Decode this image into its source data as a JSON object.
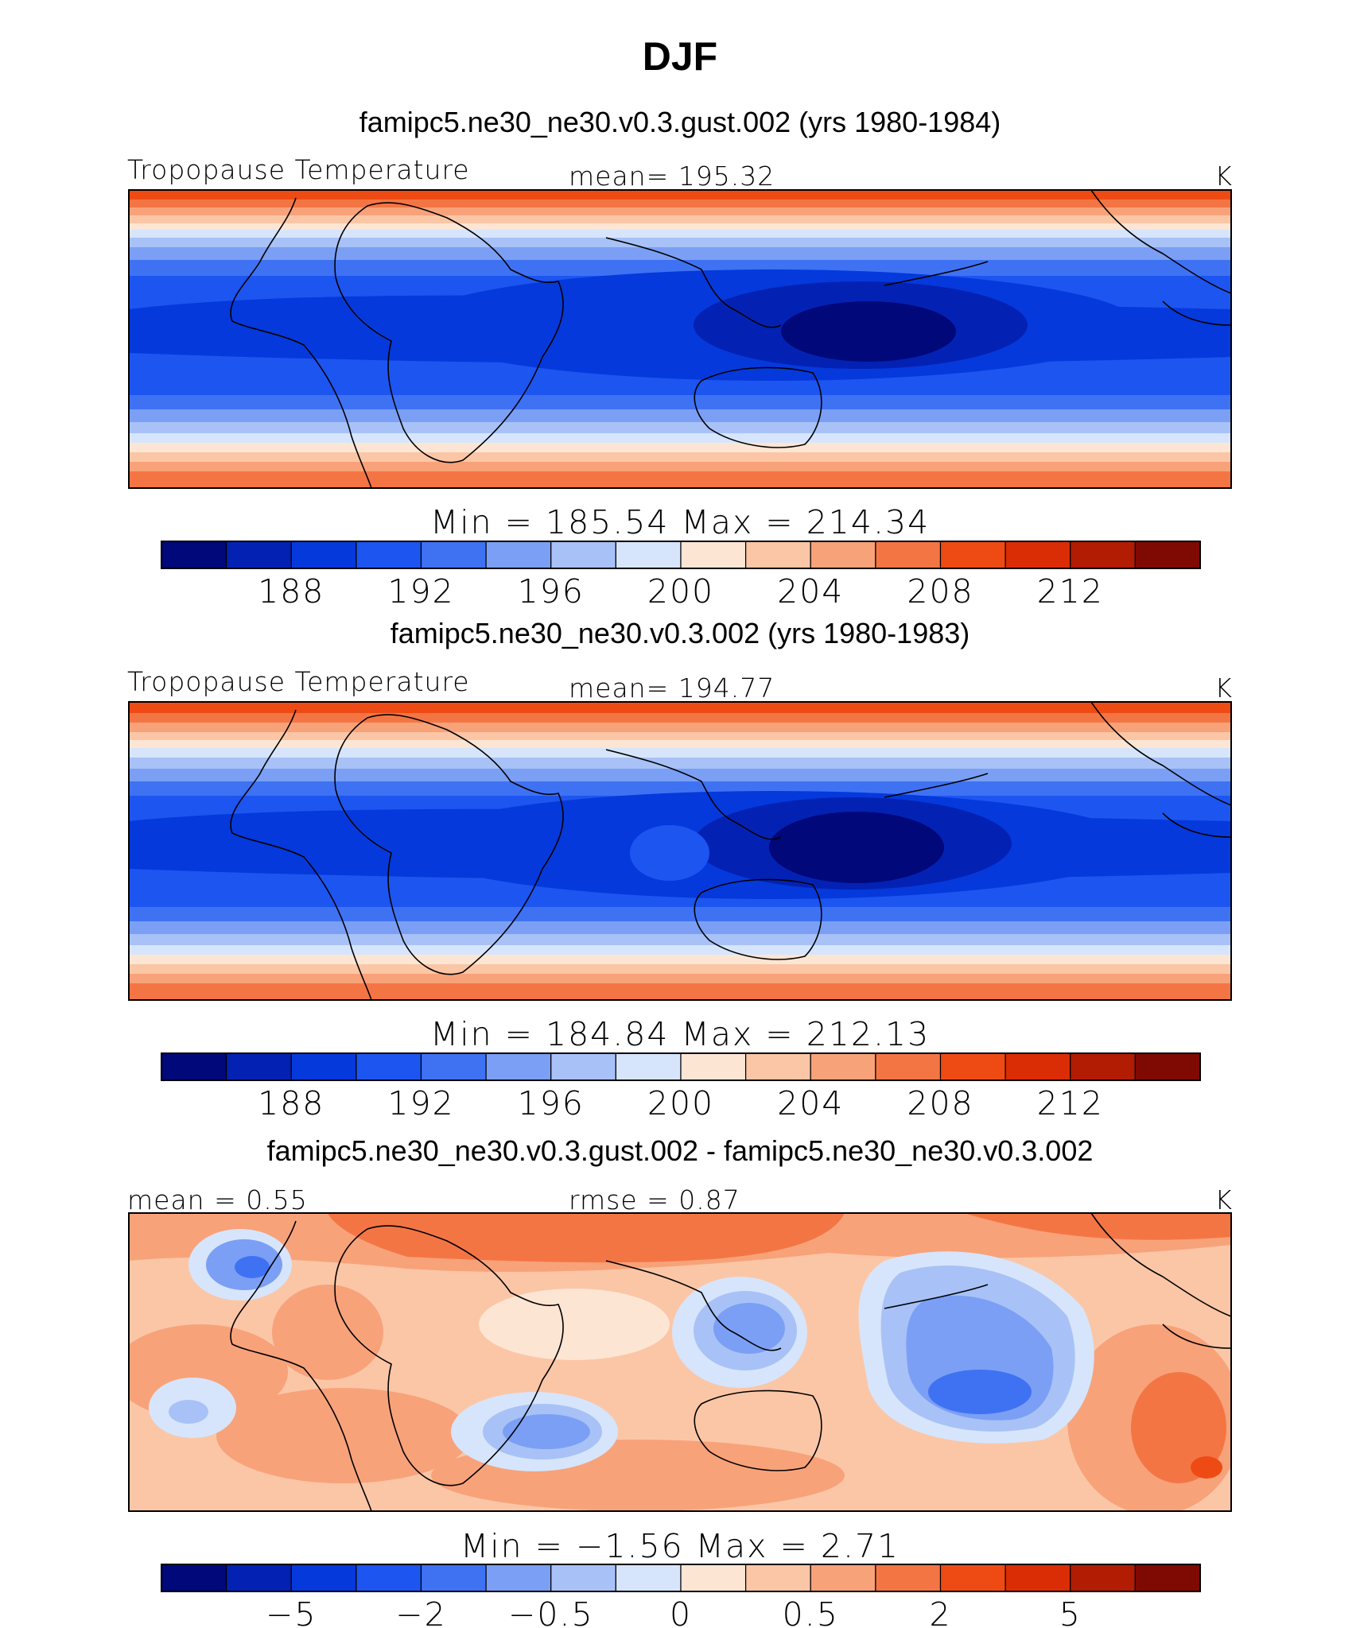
{
  "title": "DJF",
  "chart_data": [
    {
      "type": "heatmap",
      "subtitle": "famipc5.ne30_ne30.v0.3.gust.002 (yrs 1980-1984)",
      "variable": "Tropopause Temperature",
      "stat_left": "Tropopause Temperature",
      "stat_center": "mean=  195.32",
      "units": "K",
      "minmax": "Min  =  185.54  Max  =  214.34",
      "min": 185.54,
      "max": 214.34,
      "mean": 195.32,
      "colorbar_ticks": [
        "188",
        "192",
        "196",
        "200",
        "204",
        "208",
        "212"
      ],
      "colors": [
        "#00087a",
        "#0322b3",
        "#0539dc",
        "#1d55f0",
        "#3f72f3",
        "#7b9ff4",
        "#a8c2f7",
        "#d6e5fb",
        "#fde5d4",
        "#fbc6a6",
        "#f8a27a",
        "#f47544",
        "#ee4b14",
        "#db2d05",
        "#b21c02",
        "#7e0a03"
      ],
      "levels_shown_by_band_index": [
        0,
        1,
        2,
        3,
        4,
        5,
        6,
        7,
        8,
        9,
        10,
        11,
        12,
        13,
        14,
        15
      ]
    },
    {
      "type": "heatmap",
      "subtitle": "famipc5.ne30_ne30.v0.3.002 (yrs 1980-1983)",
      "variable": "Tropopause Temperature",
      "stat_left": "Tropopause Temperature",
      "stat_center": "mean=  194.77",
      "units": "K",
      "minmax": "Min  =  184.84  Max  =  212.13",
      "min": 184.84,
      "max": 212.13,
      "mean": 194.77,
      "colorbar_ticks": [
        "188",
        "192",
        "196",
        "200",
        "204",
        "208",
        "212"
      ],
      "colors": [
        "#00087a",
        "#0322b3",
        "#0539dc",
        "#1d55f0",
        "#3f72f3",
        "#7b9ff4",
        "#a8c2f7",
        "#d6e5fb",
        "#fde5d4",
        "#fbc6a6",
        "#f8a27a",
        "#f47544",
        "#ee4b14",
        "#db2d05",
        "#b21c02",
        "#7e0a03"
      ]
    },
    {
      "type": "heatmap",
      "subtitle": "famipc5.ne30_ne30.v0.3.gust.002 - famipc5.ne30_ne30.v0.3.002",
      "stat_left": "mean  =     0.55",
      "stat_center": "rmse  =     0.87",
      "units": "K",
      "minmax": "Min  =    −1.56  Max  =      2.71",
      "min": -1.56,
      "max": 2.71,
      "mean": 0.55,
      "rmse": 0.87,
      "colorbar_ticks": [
        "−5",
        "−2",
        "−0.5",
        "0",
        "0.5",
        "2",
        "5"
      ],
      "colors": [
        "#00087a",
        "#0322b3",
        "#0539dc",
        "#1d55f0",
        "#3f72f3",
        "#7b9ff4",
        "#a8c2f7",
        "#d6e5fb",
        "#fde5d4",
        "#fbc6a6",
        "#f8a27a",
        "#f47544",
        "#ee4b14",
        "#db2d05",
        "#b21c02",
        "#7e0a03"
      ]
    }
  ]
}
